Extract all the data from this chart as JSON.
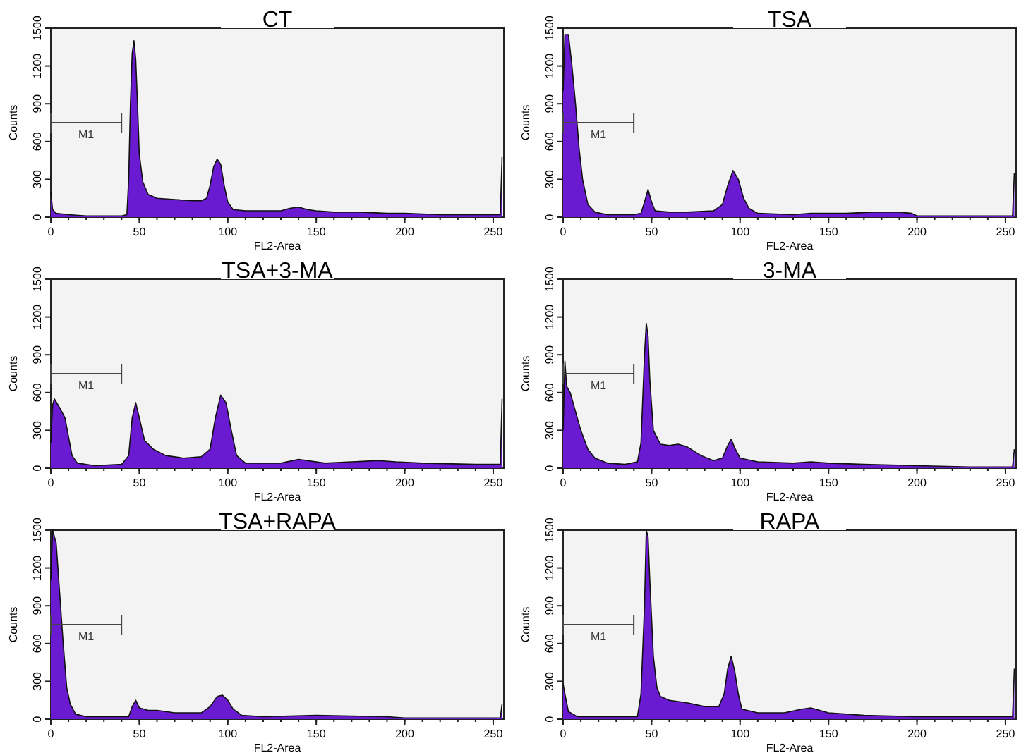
{
  "chart_data": [
    {
      "type": "area",
      "title": "CT",
      "xlabel": "FL2-Area",
      "ylabel": "Counts",
      "xlim": [
        0,
        256
      ],
      "ylim": [
        0,
        1500
      ],
      "xticks": [
        0,
        50,
        100,
        150,
        200,
        250
      ],
      "yticks": [
        0,
        300,
        600,
        900,
        1200,
        1500
      ],
      "annotations": [
        "M1"
      ],
      "series": [
        {
          "color": "#6a1bd1",
          "x": [
            0,
            1,
            3,
            10,
            20,
            30,
            40,
            43,
            44,
            45,
            46,
            47,
            48,
            49,
            50,
            52,
            55,
            60,
            70,
            80,
            85,
            88,
            90,
            92,
            94,
            96,
            98,
            100,
            103,
            110,
            120,
            130,
            135,
            140,
            145,
            150,
            160,
            175,
            190,
            200,
            220,
            240,
            254,
            255
          ],
          "values": [
            200,
            60,
            30,
            20,
            10,
            10,
            10,
            20,
            300,
            900,
            1300,
            1400,
            1250,
            900,
            500,
            280,
            180,
            150,
            140,
            130,
            130,
            150,
            250,
            400,
            460,
            420,
            250,
            120,
            60,
            50,
            50,
            50,
            70,
            80,
            60,
            50,
            40,
            40,
            30,
            30,
            20,
            20,
            20,
            480
          ]
        }
      ]
    },
    {
      "type": "area",
      "title": "TSA",
      "xlabel": "FL2-Area",
      "ylabel": "Counts",
      "xlim": [
        0,
        256
      ],
      "ylim": [
        0,
        1500
      ],
      "xticks": [
        0,
        50,
        100,
        150,
        200,
        250
      ],
      "yticks": [
        0,
        300,
        600,
        900,
        1200,
        1500
      ],
      "annotations": [
        "M1"
      ],
      "series": [
        {
          "color": "#6a1bd1",
          "x": [
            0,
            1,
            3,
            5,
            7,
            9,
            11,
            14,
            18,
            25,
            40,
            44,
            46,
            48,
            50,
            52,
            60,
            70,
            85,
            90,
            93,
            96,
            99,
            102,
            105,
            110,
            130,
            140,
            160,
            175,
            190,
            197,
            200,
            230,
            250,
            254,
            255
          ],
          "values": [
            1000,
            1450,
            1450,
            1200,
            900,
            550,
            300,
            100,
            40,
            20,
            20,
            30,
            120,
            220,
            120,
            50,
            40,
            40,
            50,
            100,
            250,
            370,
            300,
            150,
            70,
            30,
            20,
            30,
            30,
            40,
            40,
            30,
            10,
            10,
            10,
            10,
            350
          ]
        }
      ]
    },
    {
      "type": "area",
      "title": "TSA+3-MA",
      "xlabel": "FL2-Area",
      "ylabel": "Counts",
      "xlim": [
        0,
        256
      ],
      "ylim": [
        0,
        1500
      ],
      "xticks": [
        0,
        50,
        100,
        150,
        200,
        250
      ],
      "yticks": [
        0,
        300,
        600,
        900,
        1200,
        1500
      ],
      "annotations": [
        "M1"
      ],
      "series": [
        {
          "color": "#6a1bd1",
          "x": [
            0,
            1,
            2,
            5,
            8,
            10,
            12,
            15,
            25,
            40,
            44,
            46,
            48,
            50,
            53,
            58,
            65,
            75,
            85,
            90,
            93,
            96,
            99,
            102,
            105,
            110,
            130,
            140,
            145,
            155,
            170,
            185,
            195,
            210,
            240,
            254,
            255
          ],
          "values": [
            200,
            500,
            550,
            480,
            400,
            250,
            100,
            40,
            20,
            30,
            100,
            400,
            520,
            400,
            220,
            150,
            100,
            80,
            90,
            150,
            400,
            580,
            520,
            300,
            100,
            40,
            40,
            70,
            60,
            40,
            50,
            60,
            50,
            40,
            30,
            30,
            550
          ]
        }
      ]
    },
    {
      "type": "area",
      "title": "3-MA",
      "xlabel": "FL2-Area",
      "ylabel": "Counts",
      "xlim": [
        0,
        256
      ],
      "ylim": [
        0,
        1500
      ],
      "xticks": [
        0,
        50,
        100,
        150,
        200,
        250
      ],
      "yticks": [
        0,
        300,
        600,
        900,
        1200,
        1500
      ],
      "annotations": [
        "M1"
      ],
      "series": [
        {
          "color": "#6a1bd1",
          "x": [
            0,
            1,
            2,
            4,
            7,
            10,
            14,
            18,
            25,
            35,
            42,
            44,
            46,
            47,
            48,
            49,
            51,
            55,
            60,
            65,
            70,
            78,
            85,
            90,
            93,
            95,
            97,
            100,
            110,
            130,
            140,
            150,
            170,
            200,
            230,
            254,
            255
          ],
          "values": [
            300,
            850,
            650,
            600,
            450,
            300,
            150,
            80,
            40,
            30,
            50,
            200,
            900,
            1150,
            1050,
            700,
            300,
            190,
            180,
            190,
            170,
            100,
            60,
            80,
            180,
            230,
            160,
            80,
            50,
            40,
            50,
            40,
            30,
            20,
            10,
            10,
            150
          ]
        }
      ]
    },
    {
      "type": "area",
      "title": "TSA+RAPA",
      "xlabel": "FL2-Area",
      "ylabel": "Counts",
      "xlim": [
        0,
        256
      ],
      "ylim": [
        0,
        1500
      ],
      "xticks": [
        0,
        50,
        100,
        150,
        200,
        250
      ],
      "yticks": [
        0,
        300,
        600,
        900,
        1200,
        1500
      ],
      "annotations": [
        "M1"
      ],
      "series": [
        {
          "color": "#6a1bd1",
          "x": [
            0,
            1,
            3,
            5,
            7,
            9,
            11,
            14,
            20,
            40,
            44,
            46,
            48,
            50,
            55,
            60,
            70,
            85,
            90,
            94,
            97,
            100,
            103,
            108,
            120,
            150,
            190,
            200,
            250,
            254,
            255
          ],
          "values": [
            1100,
            1500,
            1400,
            1000,
            600,
            250,
            120,
            40,
            20,
            20,
            20,
            100,
            150,
            90,
            70,
            70,
            50,
            50,
            100,
            180,
            190,
            150,
            80,
            30,
            20,
            30,
            20,
            10,
            10,
            10,
            120
          ]
        }
      ]
    },
    {
      "type": "area",
      "title": "RAPA",
      "xlabel": "FL2-Area",
      "ylabel": "Counts",
      "xlim": [
        0,
        256
      ],
      "ylim": [
        0,
        1500
      ],
      "xticks": [
        0,
        50,
        100,
        150,
        200,
        250
      ],
      "yticks": [
        0,
        300,
        600,
        900,
        1200,
        1500
      ],
      "annotations": [
        "M1"
      ],
      "series": [
        {
          "color": "#6a1bd1",
          "x": [
            0,
            1,
            3,
            8,
            30,
            42,
            44,
            46,
            47,
            48,
            49,
            51,
            53,
            55,
            60,
            70,
            80,
            88,
            91,
            93,
            95,
            97,
            99,
            101,
            110,
            125,
            135,
            140,
            145,
            150,
            170,
            200,
            230,
            254,
            255
          ],
          "values": [
            280,
            200,
            60,
            20,
            20,
            20,
            200,
            900,
            1500,
            1450,
            1100,
            500,
            250,
            180,
            150,
            130,
            100,
            100,
            200,
            400,
            500,
            380,
            200,
            80,
            50,
            50,
            80,
            90,
            70,
            50,
            30,
            20,
            20,
            20,
            400
          ]
        }
      ]
    }
  ]
}
